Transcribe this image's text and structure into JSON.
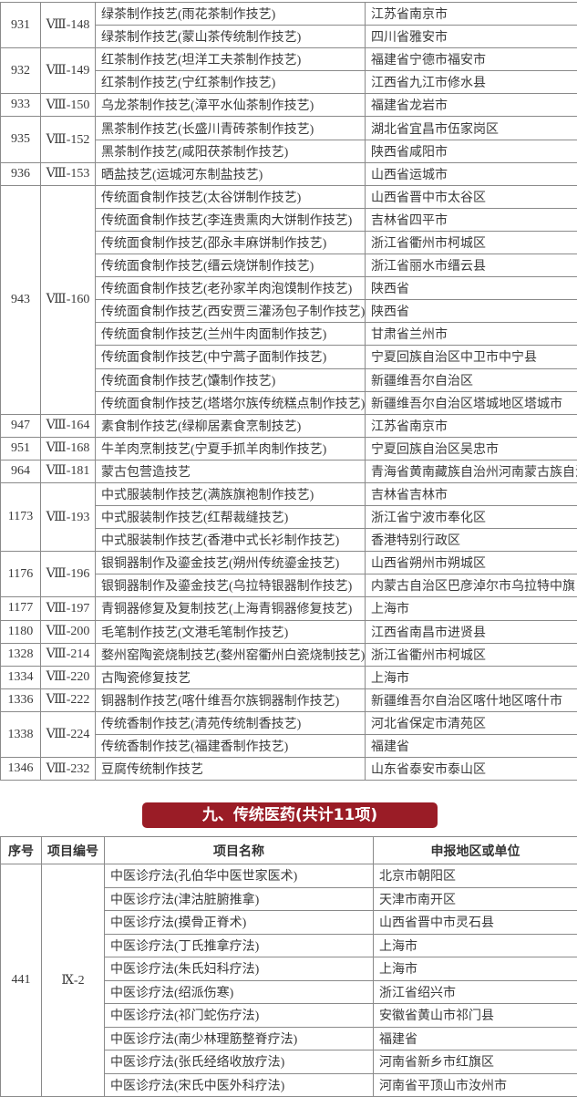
{
  "table1": {
    "groups": [
      {
        "no": "931",
        "code": "Ⅷ-148",
        "items": [
          [
            "绿茶制作技艺(雨花茶制作技艺)",
            "江苏省南京市"
          ],
          [
            "绿茶制作技艺(蒙山茶传统制作技艺)",
            "四川省雅安市"
          ]
        ]
      },
      {
        "no": "932",
        "code": "Ⅷ-149",
        "items": [
          [
            "红茶制作技艺(坦洋工夫茶制作技艺)",
            "福建省宁德市福安市"
          ],
          [
            "红茶制作技艺(宁红茶制作技艺)",
            "江西省九江市修水县"
          ]
        ]
      },
      {
        "no": "933",
        "code": "Ⅷ-150",
        "items": [
          [
            "乌龙茶制作技艺(漳平水仙茶制作技艺)",
            "福建省龙岩市"
          ]
        ]
      },
      {
        "no": "935",
        "code": "Ⅷ-152",
        "items": [
          [
            "黑茶制作技艺(长盛川青砖茶制作技艺)",
            "湖北省宜昌市伍家岗区"
          ],
          [
            "黑茶制作技艺(咸阳茯茶制作技艺)",
            "陕西省咸阳市"
          ]
        ]
      },
      {
        "no": "936",
        "code": "Ⅷ-153",
        "items": [
          [
            "晒盐技艺(运城河东制盐技艺)",
            "山西省运城市"
          ]
        ]
      },
      {
        "no": "943",
        "code": "Ⅷ-160",
        "items": [
          [
            "传统面食制作技艺(太谷饼制作技艺)",
            "山西省晋中市太谷区"
          ],
          [
            "传统面食制作技艺(李连贵熏肉大饼制作技艺)",
            "吉林省四平市"
          ],
          [
            "传统面食制作技艺(邵永丰麻饼制作技艺)",
            "浙江省衢州市柯城区"
          ],
          [
            "传统面食制作技艺(缙云烧饼制作技艺)",
            "浙江省丽水市缙云县"
          ],
          [
            "传统面食制作技艺(老孙家羊肉泡馍制作技艺)",
            "陕西省"
          ],
          [
            "传统面食制作技艺(西安贾三灌汤包子制作技艺)",
            "陕西省"
          ],
          [
            "传统面食制作技艺(兰州牛肉面制作技艺)",
            "甘肃省兰州市"
          ],
          [
            "传统面食制作技艺(中宁蒿子面制作技艺)",
            "宁夏回族自治区中卫市中宁县"
          ],
          [
            "传统面食制作技艺(馕制作技艺)",
            "新疆维吾尔自治区"
          ],
          [
            "传统面食制作技艺(塔塔尔族传统糕点制作技艺)",
            "新疆维吾尔自治区塔城地区塔城市"
          ]
        ]
      },
      {
        "no": "947",
        "code": "Ⅷ-164",
        "items": [
          [
            "素食制作技艺(绿柳居素食烹制技艺)",
            "江苏省南京市"
          ]
        ]
      },
      {
        "no": "951",
        "code": "Ⅷ-168",
        "items": [
          [
            "牛羊肉烹制技艺(宁夏手抓羊肉制作技艺)",
            "宁夏回族自治区吴忠市"
          ]
        ]
      },
      {
        "no": "964",
        "code": "Ⅷ-181",
        "items": [
          [
            "蒙古包营造技艺",
            "青海省黄南藏族自治州河南蒙古族自治县"
          ]
        ]
      },
      {
        "no": "1173",
        "code": "Ⅷ-193",
        "items": [
          [
            "中式服装制作技艺(满族旗袍制作技艺)",
            "吉林省吉林市"
          ],
          [
            "中式服装制作技艺(红帮裁缝技艺)",
            "浙江省宁波市奉化区"
          ],
          [
            "中式服装制作技艺(香港中式长衫制作技艺)",
            "香港特别行政区"
          ]
        ]
      },
      {
        "no": "1176",
        "code": "Ⅷ-196",
        "items": [
          [
            "银铜器制作及鎏金技艺(朔州传统鎏金技艺)",
            "山西省朔州市朔城区"
          ],
          [
            "银铜器制作及鎏金技艺(乌拉特银器制作技艺)",
            "内蒙古自治区巴彦淖尔市乌拉特中旗"
          ]
        ]
      },
      {
        "no": "1177",
        "code": "Ⅷ-197",
        "items": [
          [
            "青铜器修复及复制技艺(上海青铜器修复技艺)",
            "上海市"
          ]
        ]
      },
      {
        "no": "1180",
        "code": "Ⅷ-200",
        "items": [
          [
            "毛笔制作技艺(文港毛笔制作技艺)",
            "江西省南昌市进贤县"
          ]
        ]
      },
      {
        "no": "1328",
        "code": "Ⅷ-214",
        "items": [
          [
            "婺州窑陶瓷烧制技艺(婺州窑衢州白瓷烧制技艺)",
            "浙江省衢州市柯城区"
          ]
        ]
      },
      {
        "no": "1334",
        "code": "Ⅷ-220",
        "items": [
          [
            "古陶瓷修复技艺",
            "上海市"
          ]
        ]
      },
      {
        "no": "1336",
        "code": "Ⅷ-222",
        "items": [
          [
            "铜器制作技艺(喀什维吾尔族铜器制作技艺)",
            "新疆维吾尔自治区喀什地区喀什市"
          ]
        ]
      },
      {
        "no": "1338",
        "code": "Ⅷ-224",
        "items": [
          [
            "传统香制作技艺(清苑传统制香技艺)",
            "河北省保定市清苑区"
          ],
          [
            "传统香制作技艺(福建香制作技艺)",
            "福建省"
          ]
        ]
      },
      {
        "no": "1346",
        "code": "Ⅷ-232",
        "items": [
          [
            "豆腐传统制作技艺",
            "山东省泰安市泰山区"
          ]
        ]
      }
    ]
  },
  "section_banner": "九、传统医药(共计11项)",
  "banner_color": "#9a1c26",
  "table2": {
    "headers": [
      "序号",
      "项目编号",
      "项目名称",
      "申报地区或单位"
    ],
    "groups": [
      {
        "no": "441",
        "code": "Ⅸ-2",
        "items": [
          [
            "中医诊疗法(孔伯华中医世家医术)",
            "北京市朝阳区"
          ],
          [
            "中医诊疗法(津沽脏腑推拿)",
            "天津市南开区"
          ],
          [
            "中医诊疗法(摸骨正脊术)",
            "山西省晋中市灵石县"
          ],
          [
            "中医诊疗法(丁氏推拿疗法)",
            "上海市"
          ],
          [
            "中医诊疗法(朱氏妇科疗法)",
            "上海市"
          ],
          [
            "中医诊疗法(绍派伤寒)",
            "浙江省绍兴市"
          ],
          [
            "中医诊疗法(祁门蛇伤疗法)",
            "安徽省黄山市祁门县"
          ],
          [
            "中医诊疗法(南少林理筋整脊疗法)",
            "福建省"
          ],
          [
            "中医诊疗法(张氏经络收放疗法)",
            "河南省新乡市红旗区"
          ],
          [
            "中医诊疗法(宋氏中医外科疗法)",
            "河南省平顶山市汝州市"
          ]
        ]
      }
    ]
  }
}
